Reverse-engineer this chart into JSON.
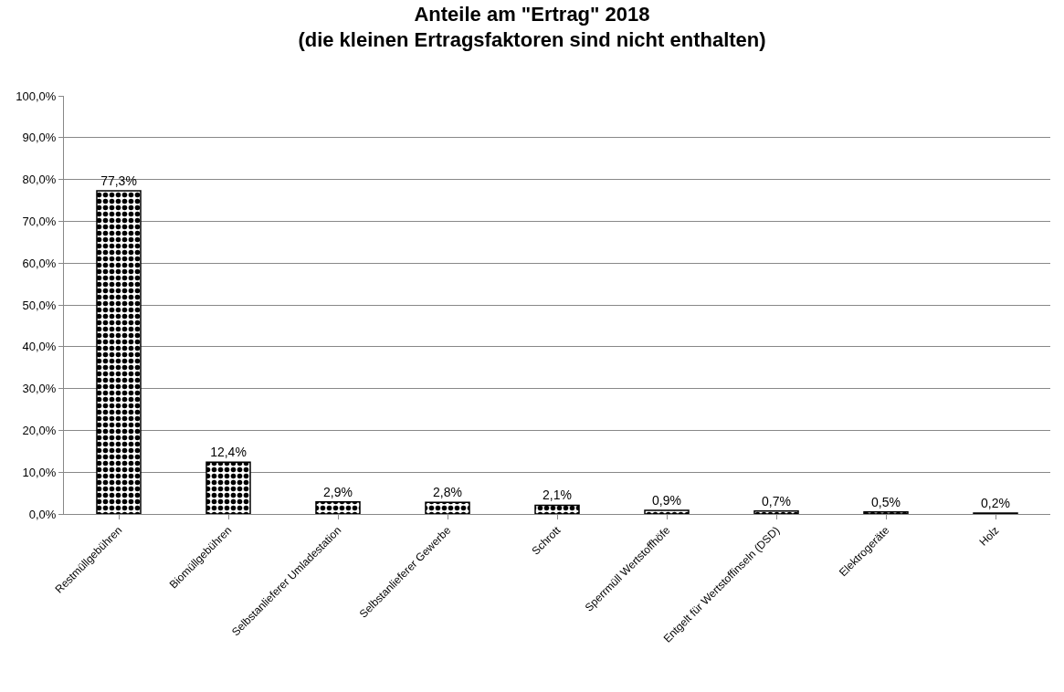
{
  "chart_data": {
    "type": "bar",
    "title": "Anteile am \"Ertrag\" 2018\n(die kleinen Ertragsfaktoren sind nicht enthalten)",
    "categories": [
      "Restmüllgebühren",
      "Biomüllgebühren",
      "Selbstanlieferer Umladestation",
      "Selbstanlieferer Gewerbe",
      "Schrott",
      "Sperrmüll Wertstoffhöfe",
      "Entgelt für Wertstoffinseln (DSD)",
      "Elektrogeräte",
      "Holz"
    ],
    "values": [
      77.3,
      12.4,
      2.9,
      2.8,
      2.1,
      0.9,
      0.7,
      0.5,
      0.2
    ],
    "value_labels": [
      "77,3%",
      "12,4%",
      "2,9%",
      "2,8%",
      "2,1%",
      "0,9%",
      "0,7%",
      "0,5%",
      "0,2%"
    ],
    "color": "#000000",
    "ylim": [
      0,
      100
    ],
    "yticks": [
      {
        "value": 0,
        "label": "0,0%"
      },
      {
        "value": 10,
        "label": "10,0%"
      },
      {
        "value": 20,
        "label": "20,0%"
      },
      {
        "value": 30,
        "label": "30,0%"
      },
      {
        "value": 40,
        "label": "40,0%"
      },
      {
        "value": 50,
        "label": "50,0%"
      },
      {
        "value": 60,
        "label": "60,0%"
      },
      {
        "value": 70,
        "label": "70,0%"
      },
      {
        "value": 80,
        "label": "80,0%"
      },
      {
        "value": 90,
        "label": "90,0%"
      },
      {
        "value": 100,
        "label": "100,0%"
      }
    ],
    "grid": "y"
  }
}
